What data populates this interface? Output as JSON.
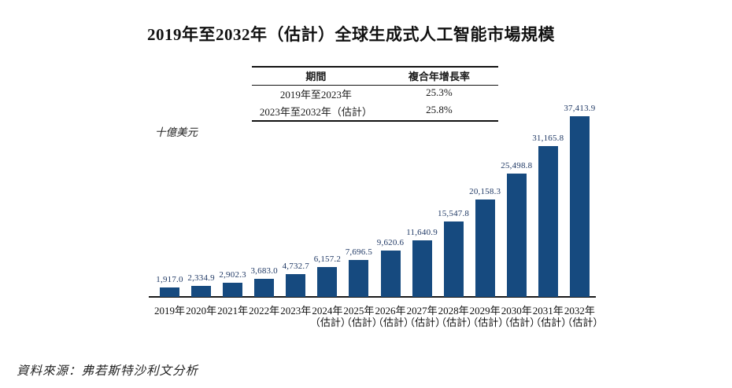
{
  "title": "2019年至2032年（估計）全球生成式人工智能市場規模",
  "cagr_table": {
    "headers": [
      "期間",
      "複合年增長率"
    ],
    "rows": [
      [
        "2019年至2023年",
        "25.3%"
      ],
      [
        "2023年至2032年（估計）",
        "25.8%"
      ]
    ]
  },
  "unit_label": "十億美元",
  "source": "資料來源：弗若斯特沙利文分析",
  "colors": {
    "bar": "#164A7F",
    "value_label": "#1F3864",
    "axis_line": "#1a1a1a",
    "text": "#111111"
  },
  "chart_data": {
    "type": "bar",
    "title": "2019年至2032年（估計）全球生成式人工智能市場規模",
    "xlabel": "",
    "ylabel": "十億美元",
    "categories": [
      "2019年",
      "2020年",
      "2021年",
      "2022年",
      "2023年",
      "2024年（估計）",
      "2025年（估計）",
      "2026年（估計）",
      "2027年（估計）",
      "2028年（估計）",
      "2029年（估計）",
      "2030年（估計）",
      "2031年（估計）",
      "2032年（估計）"
    ],
    "values": [
      1917.0,
      2334.9,
      2902.3,
      3683.0,
      4732.7,
      6157.2,
      7696.5,
      9620.6,
      11640.9,
      15547.8,
      20158.3,
      25498.8,
      31165.8,
      37413.9
    ],
    "value_labels": [
      "1,917.0",
      "2,334.9",
      "2,902.3",
      "3,683.0",
      "4,732.7",
      "6,157.2",
      "7,696.5",
      "9,620.6",
      "11,640.9",
      "15,547.8",
      "20,158.3",
      "25,498.8",
      "31,165.8",
      "37,413.9"
    ],
    "estimate_suffix": "（估計）",
    "ylim": [
      0,
      37413.9
    ],
    "grid": false,
    "legend": "none",
    "bar_color": "#164A7F"
  }
}
